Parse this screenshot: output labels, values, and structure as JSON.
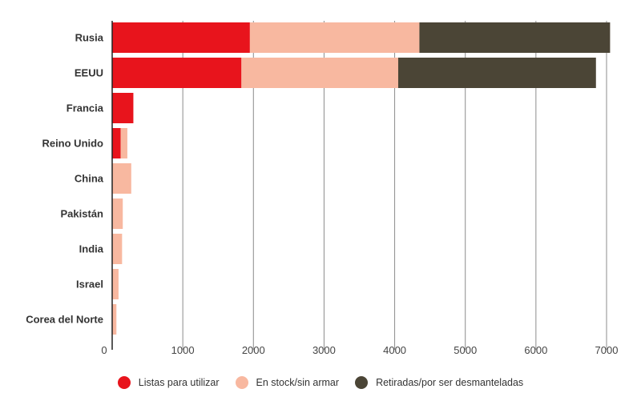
{
  "chart_data": {
    "type": "bar",
    "orientation": "horizontal",
    "stacked": true,
    "categories": [
      "Rusia",
      "EEUU",
      "Francia",
      "Reino Unido",
      "China",
      "Pakistán",
      "India",
      "Israel",
      "Corea del Norte"
    ],
    "series": [
      {
        "name": "Listas para utilizar",
        "color": "#e8141c",
        "values": [
          1950,
          1830,
          300,
          120,
          0,
          0,
          0,
          0,
          0
        ]
      },
      {
        "name": "En stock/sin armar",
        "color": "#f8b8a0",
        "values": [
          2400,
          2220,
          0,
          95,
          270,
          150,
          140,
          90,
          60
        ]
      },
      {
        "name": "Retiradas/por ser desmanteladas",
        "color": "#4b4536",
        "values": [
          2700,
          2800,
          0,
          0,
          0,
          0,
          0,
          0,
          0
        ]
      }
    ],
    "x_ticks": [
      "0",
      "1000",
      "2000",
      "3000",
      "4000",
      "5000",
      "6000",
      "7000"
    ],
    "xlim": [
      0,
      7000
    ],
    "grid": true,
    "legend_position": "bottom"
  }
}
